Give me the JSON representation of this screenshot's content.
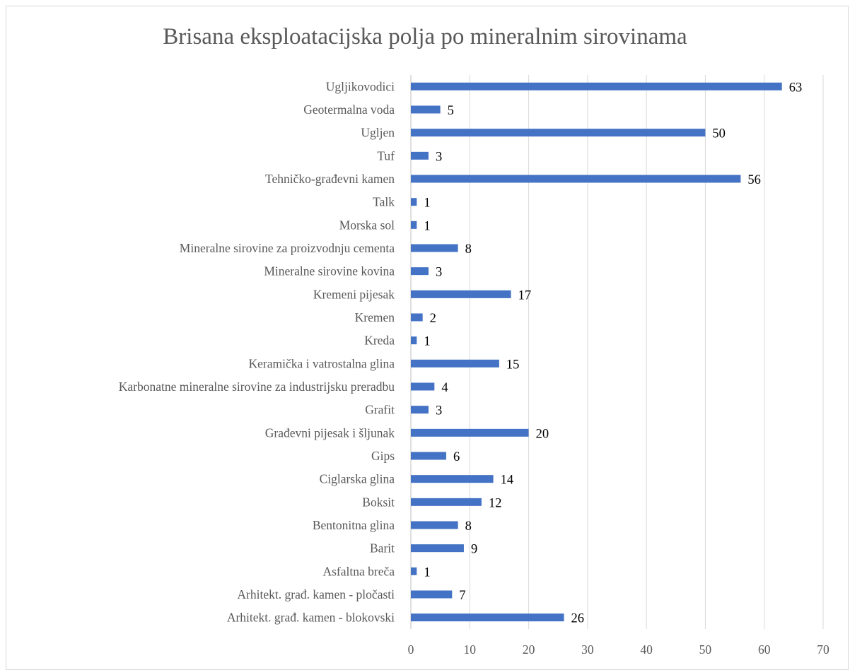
{
  "chart_data": {
    "type": "bar",
    "orientation": "horizontal",
    "title": "Brisana eksploatacijska polja po mineralnim sirovinama",
    "xlabel": "",
    "ylabel": "",
    "categories": [
      "Ugljikovodici",
      "Geotermalna voda",
      "Ugljen",
      "Tuf",
      "Tehničko-građevni kamen",
      "Talk",
      "Morska sol",
      "Mineralne sirovine za proizvodnju cementa",
      "Mineralne sirovine kovina",
      "Kremeni pijesak",
      "Kremen",
      "Kreda",
      "Keramička i vatrostalna glina",
      "Karbonatne mineralne sirovine za industrijsku preradbu",
      "Grafit",
      "Građevni pijesak i šljunak",
      "Gips",
      "Ciglarska glina",
      "Boksit",
      "Bentonitna glina",
      "Barit",
      "Asfaltna breča",
      "Arhitekt. građ. kamen - pločasti",
      "Arhitekt. građ. kamen - blokovski"
    ],
    "values": [
      63,
      5,
      50,
      3,
      56,
      1,
      1,
      8,
      3,
      17,
      2,
      1,
      15,
      4,
      3,
      20,
      6,
      14,
      12,
      8,
      9,
      1,
      7,
      26
    ],
    "xlim": [
      0,
      70
    ],
    "xticks": [
      0,
      10,
      20,
      30,
      40,
      50,
      60,
      70
    ],
    "grid": "vertical",
    "legend": "none",
    "data_labels": true,
    "colors": {
      "bar": "#4472C4",
      "grid": "#d9d9d9",
      "axis_text": "#595959",
      "title": "#595959",
      "data_label": "#000000",
      "axis_line": "#bfbfbf"
    }
  }
}
